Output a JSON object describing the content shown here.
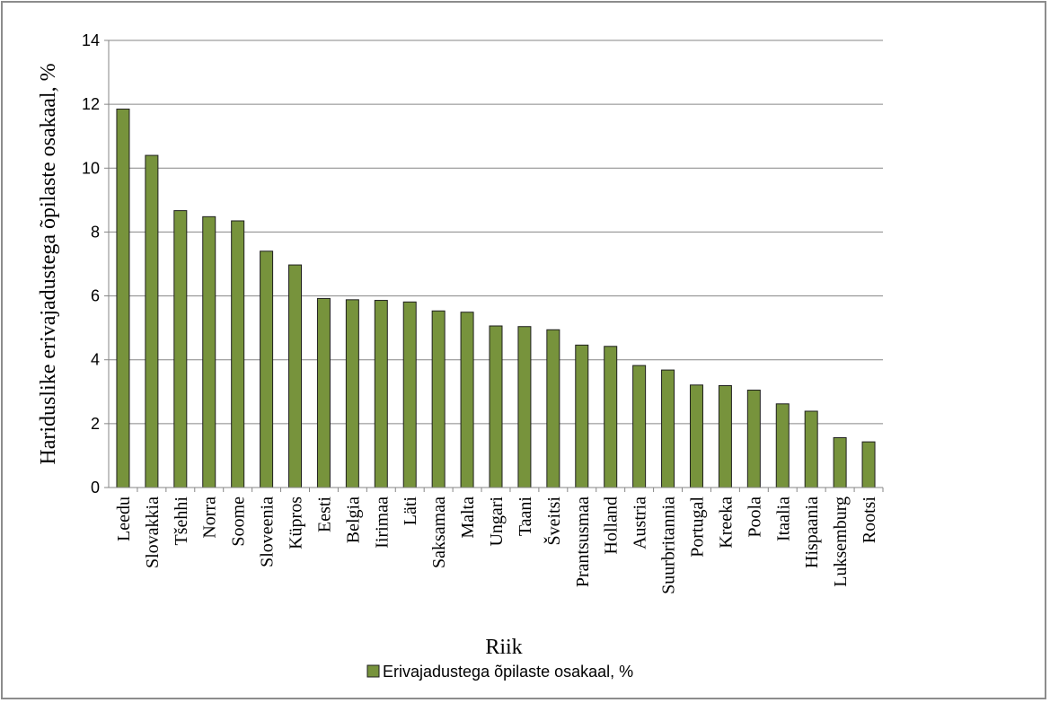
{
  "chart_data": {
    "type": "bar",
    "title": "",
    "xlabel": "Riik",
    "ylabel": "Hariduslike erivajadustega õpilaste  osakaal,  %",
    "ylim": [
      0,
      14
    ],
    "yticks": [
      0,
      2,
      4,
      6,
      8,
      10,
      12,
      14
    ],
    "grid": true,
    "legend_position": "bottom",
    "categories": [
      "Leedu",
      "Slovakkia",
      "Tšehhi",
      "Norra",
      "Soome",
      "Sloveenia",
      "Küpros",
      "Eesti",
      "Belgia",
      "Iirimaa",
      "Läti",
      "Saksamaa",
      "Malta",
      "Ungari",
      "Taani",
      "Šveitsi",
      "Prantsusmaa",
      "Holland",
      "Austria",
      "Suurbritannia",
      "Portugal",
      "Kreeka",
      "Poola",
      "Itaalia",
      "Hispaania",
      "Luksemburg",
      "Rootsi"
    ],
    "series": [
      {
        "name": "Erivajadustega õpilaste osakaal, %",
        "color": "#77933c",
        "values": [
          11.85,
          10.4,
          8.67,
          8.48,
          8.35,
          7.4,
          6.97,
          5.92,
          5.88,
          5.86,
          5.81,
          5.53,
          5.49,
          5.06,
          5.04,
          4.94,
          4.46,
          4.42,
          3.82,
          3.68,
          3.21,
          3.19,
          3.05,
          2.62,
          2.39,
          1.56,
          1.43
        ]
      }
    ]
  },
  "colors": {
    "bar_fill": "#77933c",
    "bar_stroke": "#1f1f1f",
    "grid": "#868686",
    "axis": "#868686"
  }
}
